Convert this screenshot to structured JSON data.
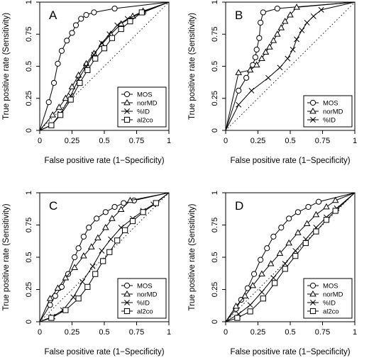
{
  "chart_data": [
    {
      "type": "line",
      "panel_label": "A",
      "xlabel": "False positive rate (1−Specificity)",
      "ylabel": "True positive rate (Sensitivity)",
      "xlim": [
        0,
        1
      ],
      "ylim": [
        0,
        1
      ],
      "x_ticks": [
        "0",
        "0.25",
        "0.5",
        "0.75",
        "1"
      ],
      "y_ticks": [
        "0",
        "0.25",
        "0.5",
        "0.75",
        "1"
      ],
      "diagonal_reference": true,
      "legend_position": "bottom-right",
      "series": [
        {
          "name": "MOS",
          "marker": "circle",
          "x": [
            0,
            0.07,
            0.11,
            0.14,
            0.17,
            0.21,
            0.25,
            0.28,
            0.32,
            0.36,
            0.42,
            0.58,
            1.0
          ],
          "y": [
            0,
            0.22,
            0.37,
            0.52,
            0.62,
            0.7,
            0.76,
            0.82,
            0.87,
            0.9,
            0.92,
            0.95,
            1.0
          ]
        },
        {
          "name": "norMD",
          "marker": "triangle",
          "x": [
            0,
            0.1,
            0.15,
            0.2,
            0.25,
            0.3,
            0.36,
            0.42,
            0.48,
            0.55,
            0.63,
            0.72,
            0.8,
            1.0
          ],
          "y": [
            0,
            0.12,
            0.18,
            0.25,
            0.34,
            0.43,
            0.52,
            0.6,
            0.67,
            0.75,
            0.83,
            0.89,
            0.93,
            1.0
          ]
        },
        {
          "name": "%ID",
          "marker": "cross",
          "x": [
            0,
            0.09,
            0.16,
            0.24,
            0.3,
            0.36,
            0.42,
            0.48,
            0.54,
            0.6,
            0.68,
            0.8,
            1.0
          ],
          "y": [
            0,
            0.04,
            0.13,
            0.27,
            0.4,
            0.5,
            0.59,
            0.68,
            0.75,
            0.82,
            0.87,
            0.92,
            1.0
          ]
        },
        {
          "name": "al2co",
          "marker": "square",
          "x": [
            0,
            0.09,
            0.16,
            0.24,
            0.31,
            0.37,
            0.43,
            0.5,
            0.56,
            0.63,
            0.7,
            0.79,
            1.0
          ],
          "y": [
            0,
            0.04,
            0.12,
            0.24,
            0.37,
            0.47,
            0.56,
            0.64,
            0.72,
            0.79,
            0.85,
            0.92,
            1.0
          ]
        }
      ]
    },
    {
      "type": "line",
      "panel_label": "B",
      "xlabel": "False positive rate (1−Specificity)",
      "ylabel": "True positive rate (Sensitivity)",
      "xlim": [
        0,
        1
      ],
      "ylim": [
        0,
        1
      ],
      "x_ticks": [
        "0",
        "0.25",
        "0.5",
        "0.75",
        "1"
      ],
      "y_ticks": [
        "0",
        "0.25",
        "0.5",
        "0.75",
        "1"
      ],
      "diagonal_reference": true,
      "legend_position": "bottom-right",
      "series": [
        {
          "name": "MOS",
          "marker": "circle",
          "x": [
            0,
            0.1,
            0.16,
            0.21,
            0.23,
            0.24,
            0.26,
            0.27,
            0.29,
            0.4,
            1.0
          ],
          "y": [
            0,
            0.31,
            0.41,
            0.51,
            0.57,
            0.63,
            0.72,
            0.84,
            0.92,
            0.95,
            1.0
          ]
        },
        {
          "name": "norMD",
          "marker": "triangle",
          "x": [
            0,
            0.1,
            0.19,
            0.24,
            0.28,
            0.31,
            0.34,
            0.37,
            0.4,
            0.43,
            0.46,
            0.5,
            0.55,
            1.0
          ],
          "y": [
            0,
            0.45,
            0.47,
            0.51,
            0.56,
            0.61,
            0.65,
            0.7,
            0.75,
            0.8,
            0.85,
            0.9,
            0.96,
            1.0
          ]
        },
        {
          "name": "%ID",
          "marker": "cross",
          "x": [
            0,
            0.1,
            0.2,
            0.33,
            0.42,
            0.48,
            0.52,
            0.55,
            0.59,
            0.63,
            0.68,
            0.74,
            1.0
          ],
          "y": [
            0,
            0.2,
            0.31,
            0.41,
            0.49,
            0.56,
            0.63,
            0.71,
            0.78,
            0.84,
            0.89,
            0.94,
            1.0
          ]
        }
      ]
    },
    {
      "type": "line",
      "panel_label": "C",
      "xlabel": "False positive rate (1−Specificity)",
      "ylabel": "True positive rate (Sensitivity)",
      "xlim": [
        0,
        1
      ],
      "ylim": [
        0,
        1
      ],
      "x_ticks": [
        "0",
        "0.25",
        "0.5",
        "0.75",
        "1"
      ],
      "y_ticks": [
        "0",
        "0.25",
        "0.5",
        "0.75",
        "1"
      ],
      "diagonal_reference": true,
      "legend_position": "bottom-right",
      "series": [
        {
          "name": "MOS",
          "marker": "circle",
          "x": [
            0,
            0.08,
            0.12,
            0.17,
            0.22,
            0.27,
            0.3,
            0.34,
            0.38,
            0.44,
            0.51,
            0.58,
            0.65,
            0.73,
            1.0
          ],
          "y": [
            0,
            0.13,
            0.2,
            0.27,
            0.37,
            0.5,
            0.57,
            0.66,
            0.73,
            0.8,
            0.85,
            0.89,
            0.92,
            0.94,
            1.0
          ]
        },
        {
          "name": "norMD",
          "marker": "triangle",
          "x": [
            0,
            0.08,
            0.14,
            0.2,
            0.27,
            0.34,
            0.4,
            0.45,
            0.51,
            0.56,
            0.63,
            0.7,
            1.0
          ],
          "y": [
            0,
            0.18,
            0.26,
            0.34,
            0.42,
            0.51,
            0.58,
            0.65,
            0.73,
            0.8,
            0.87,
            0.94,
            1.0
          ]
        },
        {
          "name": "%ID",
          "marker": "cross",
          "x": [
            0,
            0.1,
            0.18,
            0.26,
            0.33,
            0.41,
            0.48,
            0.55,
            0.63,
            0.72,
            0.8,
            0.88,
            1.0
          ],
          "y": [
            0,
            0.04,
            0.09,
            0.19,
            0.31,
            0.43,
            0.55,
            0.64,
            0.73,
            0.8,
            0.86,
            0.91,
            1.0
          ]
        },
        {
          "name": "al2co",
          "marker": "square",
          "x": [
            0,
            0.09,
            0.2,
            0.3,
            0.37,
            0.43,
            0.49,
            0.54,
            0.6,
            0.66,
            0.72,
            0.8,
            0.9,
            1.0
          ],
          "y": [
            0,
            0.03,
            0.09,
            0.18,
            0.27,
            0.37,
            0.47,
            0.54,
            0.63,
            0.71,
            0.78,
            0.85,
            0.92,
            1.0
          ]
        }
      ]
    },
    {
      "type": "line",
      "panel_label": "D",
      "xlabel": "False positive rate (1−Specificity)",
      "ylabel": "True positive rate (Sensitivity)",
      "xlim": [
        0,
        1
      ],
      "ylim": [
        0,
        1
      ],
      "x_ticks": [
        "0",
        "0.25",
        "0.5",
        "0.75",
        "1"
      ],
      "y_ticks": [
        "0",
        "0.25",
        "0.5",
        "0.75",
        "1"
      ],
      "diagonal_reference": true,
      "legend_position": "bottom-right",
      "series": [
        {
          "name": "MOS",
          "marker": "circle",
          "x": [
            0,
            0.08,
            0.12,
            0.17,
            0.22,
            0.27,
            0.32,
            0.37,
            0.43,
            0.49,
            0.56,
            0.64,
            0.72,
            1.0
          ],
          "y": [
            0,
            0.1,
            0.17,
            0.26,
            0.37,
            0.48,
            0.57,
            0.66,
            0.73,
            0.8,
            0.85,
            0.89,
            0.93,
            1.0
          ]
        },
        {
          "name": "norMD",
          "marker": "triangle",
          "x": [
            0,
            0.08,
            0.15,
            0.21,
            0.28,
            0.35,
            0.42,
            0.49,
            0.56,
            0.63,
            0.7,
            0.78,
            0.85,
            1.0
          ],
          "y": [
            0,
            0.12,
            0.2,
            0.28,
            0.37,
            0.45,
            0.53,
            0.61,
            0.69,
            0.76,
            0.83,
            0.89,
            0.94,
            1.0
          ]
        },
        {
          "name": "%ID",
          "marker": "cross",
          "x": [
            0,
            0.1,
            0.19,
            0.28,
            0.37,
            0.46,
            0.54,
            0.62,
            0.7,
            0.78,
            0.86,
            1.0
          ],
          "y": [
            0,
            0.06,
            0.13,
            0.23,
            0.34,
            0.45,
            0.55,
            0.64,
            0.73,
            0.81,
            0.88,
            1.0
          ]
        },
        {
          "name": "al2co",
          "marker": "square",
          "x": [
            0,
            0.09,
            0.19,
            0.29,
            0.38,
            0.46,
            0.54,
            0.62,
            0.7,
            0.78,
            0.85,
            1.0
          ],
          "y": [
            0,
            0.03,
            0.08,
            0.18,
            0.3,
            0.41,
            0.51,
            0.61,
            0.7,
            0.79,
            0.86,
            1.0
          ]
        }
      ]
    }
  ]
}
